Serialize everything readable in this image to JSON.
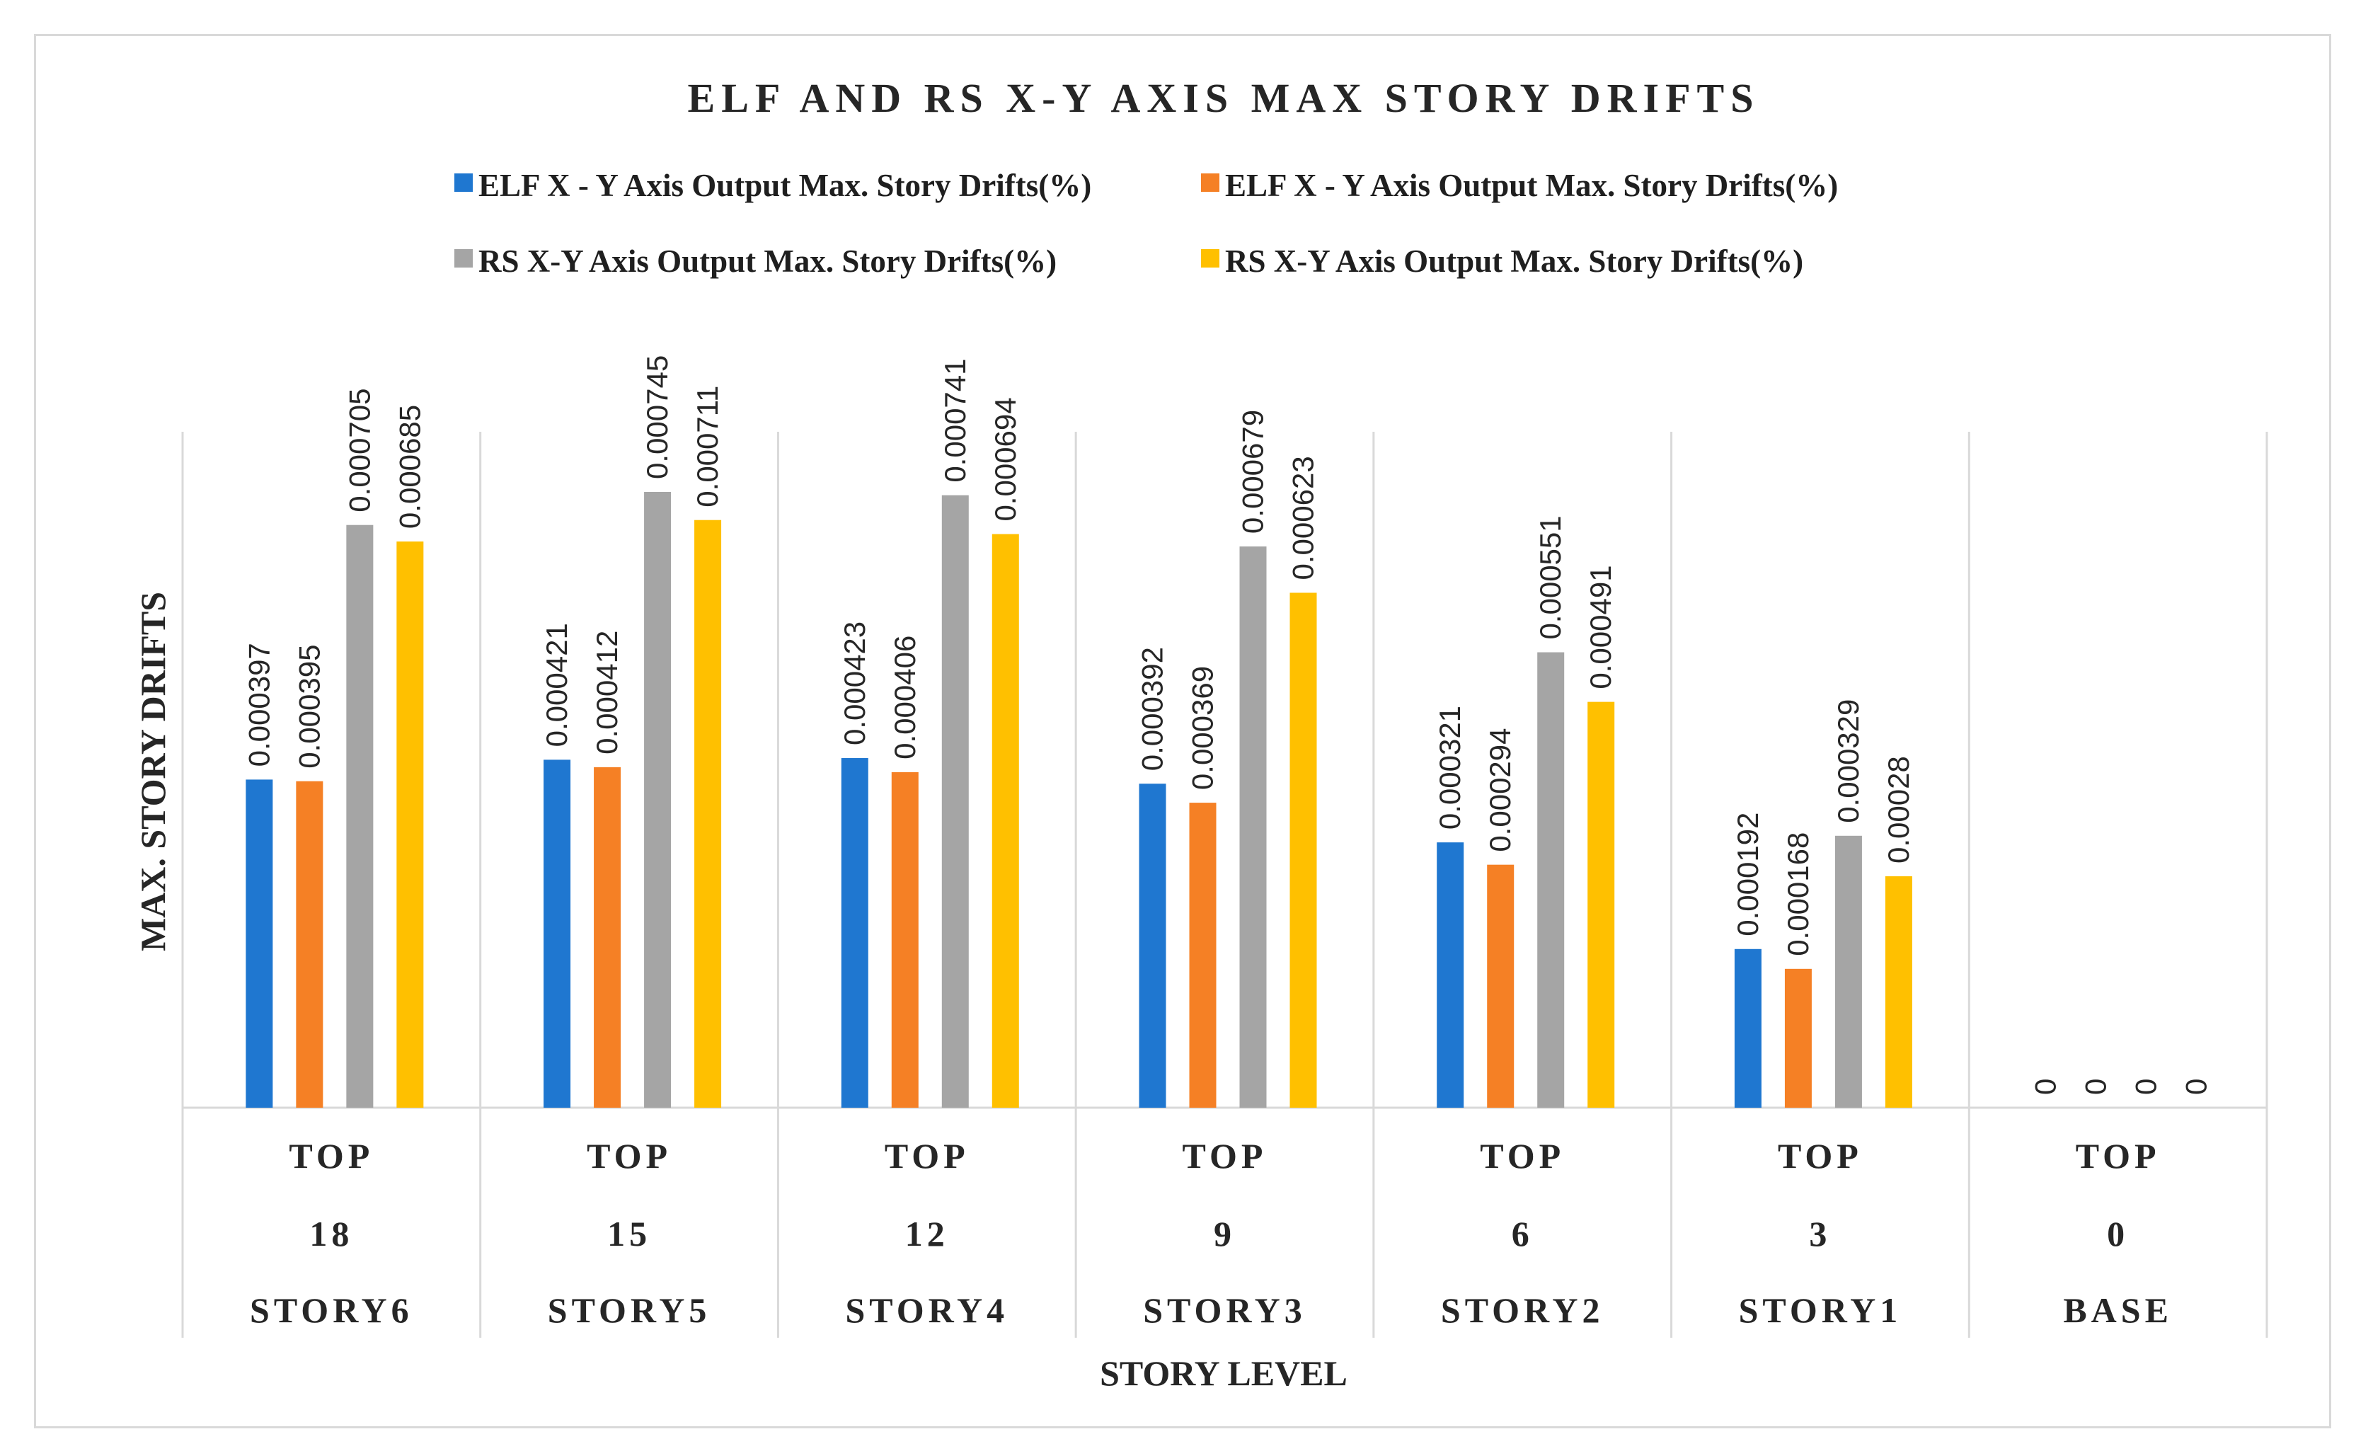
{
  "chart_data": {
    "type": "bar",
    "title": "ELF AND RS X-Y AXIS MAX STORY DRIFTS",
    "xlabel": "STORY LEVEL",
    "ylabel": "MAX. STORY DRIFTS",
    "ylim": [
      0,
      0.00085
    ],
    "grid": "vertical category separators",
    "legend_position": "top",
    "categories": [
      {
        "level": "TOP",
        "height": "18",
        "story": "STORY6"
      },
      {
        "level": "TOP",
        "height": "15",
        "story": "STORY5"
      },
      {
        "level": "TOP",
        "height": "12",
        "story": "STORY4"
      },
      {
        "level": "TOP",
        "height": "9",
        "story": "STORY3"
      },
      {
        "level": "TOP",
        "height": "6",
        "story": "STORY2"
      },
      {
        "level": "TOP",
        "height": "3",
        "story": "STORY1"
      },
      {
        "level": "TOP",
        "height": "0",
        "story": "BASE"
      }
    ],
    "series": [
      {
        "name": "ELF X - Y Axis Output Max. Story Drifts(%)",
        "color": "#1f77d0",
        "values": [
          0.000397,
          0.000421,
          0.000423,
          0.000392,
          0.000321,
          0.000192,
          0
        ],
        "labels": [
          "0.000397",
          "0.000421",
          "0.000423",
          "0.000392",
          "0.000321",
          "0.000192",
          "0"
        ]
      },
      {
        "name": "ELF X - Y Axis Output Max. Story Drifts(%)",
        "color": "#f58025",
        "values": [
          0.000395,
          0.000412,
          0.000406,
          0.000369,
          0.000294,
          0.000168,
          0
        ],
        "labels": [
          "0.000395",
          "0.000412",
          "0.000406",
          "0.000369",
          "0.000294",
          "0.000168",
          "0"
        ]
      },
      {
        "name": "RS X-Y Axis Output Max. Story Drifts(%)",
        "color": "#a5a5a5",
        "values": [
          0.000705,
          0.000745,
          0.000741,
          0.000679,
          0.000551,
          0.000329,
          0
        ],
        "labels": [
          "0.000705",
          "0.000745",
          "0.000741",
          "0.000679",
          "0.000551",
          "0.000329",
          "0"
        ]
      },
      {
        "name": "RS X-Y Axis Output Max. Story Drifts(%)",
        "color": "#ffc000",
        "values": [
          0.000685,
          0.000711,
          0.000694,
          0.000623,
          0.000491,
          0.00028,
          0
        ],
        "labels": [
          "0.000685",
          "0.000711",
          "0.000694",
          "0.000623",
          "0.000491",
          "0.00028",
          "0"
        ]
      }
    ]
  }
}
